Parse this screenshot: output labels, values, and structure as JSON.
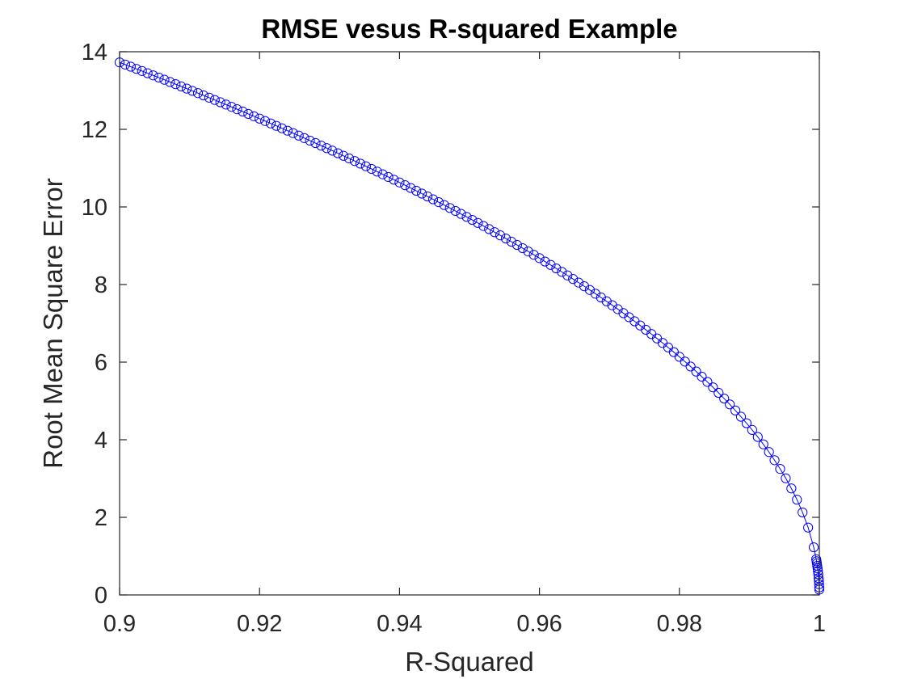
{
  "chart_data": {
    "type": "line",
    "title": "RMSE vesus R-squared Example",
    "xlabel": "R-Squared",
    "ylabel": "Root Mean Square Error",
    "xlim": [
      0.9,
      1
    ],
    "ylim": [
      0,
      14
    ],
    "xticks": [
      0.9,
      0.92,
      0.94,
      0.96,
      0.98,
      1
    ],
    "xtick_labels": [
      "0.9",
      "0.92",
      "0.94",
      "0.96",
      "0.98",
      "1"
    ],
    "yticks": [
      0,
      2,
      4,
      6,
      8,
      10,
      12,
      14
    ],
    "ytick_labels": [
      "0",
      "2",
      "4",
      "6",
      "8",
      "10",
      "12",
      "14"
    ],
    "grid": false,
    "box": true,
    "series": [
      {
        "color": "#0000ff",
        "marker": "circle",
        "relation": "rmse = 43.4 * sqrt(1 - r_squared)",
        "x_start": 0.9,
        "x_end": 0.99999,
        "x_step": 0.0008,
        "dense_tail_x": [
          0.99955,
          0.9996,
          0.99965,
          0.9997,
          0.99975,
          0.9998,
          0.99985,
          0.9999,
          0.99993,
          0.99996,
          0.99998,
          0.99999
        ]
      }
    ]
  }
}
